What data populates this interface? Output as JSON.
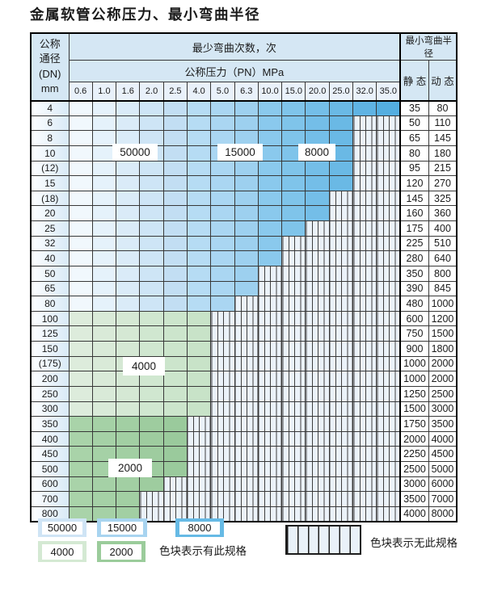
{
  "page": {
    "title": "金属软管公称压力、最小弯曲半径"
  },
  "table": {
    "corner_header": "公称\n通径\n(DN)\nmm",
    "bend_cycles_header": "最少弯曲次数，次",
    "pressure_header": "公称压力（PN）MPa",
    "radius_header": "最小弯曲半径",
    "static_header": "静 态",
    "dynamic_header": "动 态",
    "pressure_columns": [
      "0.6",
      "1.0",
      "1.6",
      "2.0",
      "2.5",
      "4.0",
      "5.0",
      "6.3",
      "10.0",
      "15.0",
      "20.0",
      "25.0",
      "32.0",
      "35.0"
    ],
    "rows": [
      {
        "dn": "4",
        "family": "blue",
        "max_pn": "35.0",
        "static": "35",
        "dynamic": "80"
      },
      {
        "dn": "6",
        "family": "blue",
        "max_pn": "25.0",
        "static": "50",
        "dynamic": "110"
      },
      {
        "dn": "8",
        "family": "blue",
        "max_pn": "25.0",
        "static": "65",
        "dynamic": "145"
      },
      {
        "dn": "10",
        "family": "blue",
        "max_pn": "25.0",
        "static": "80",
        "dynamic": "180"
      },
      {
        "dn": "(12)",
        "family": "blue",
        "max_pn": "25.0",
        "static": "95",
        "dynamic": "215"
      },
      {
        "dn": "15",
        "family": "blue",
        "max_pn": "25.0",
        "static": "120",
        "dynamic": "270"
      },
      {
        "dn": "(18)",
        "family": "blue",
        "max_pn": "20.0",
        "static": "145",
        "dynamic": "325"
      },
      {
        "dn": "20",
        "family": "blue",
        "max_pn": "20.0",
        "static": "160",
        "dynamic": "360"
      },
      {
        "dn": "25",
        "family": "blue",
        "max_pn": "15.0",
        "static": "175",
        "dynamic": "400"
      },
      {
        "dn": "32",
        "family": "blue",
        "max_pn": "10.0",
        "static": "225",
        "dynamic": "510"
      },
      {
        "dn": "40",
        "family": "blue",
        "max_pn": "10.0",
        "static": "280",
        "dynamic": "640"
      },
      {
        "dn": "50",
        "family": "blue",
        "max_pn": "6.3",
        "static": "350",
        "dynamic": "800"
      },
      {
        "dn": "65",
        "family": "blue",
        "max_pn": "6.3",
        "static": "390",
        "dynamic": "845"
      },
      {
        "dn": "80",
        "family": "blue",
        "max_pn": "5.0",
        "static": "480",
        "dynamic": "1000"
      },
      {
        "dn": "100",
        "family": "4000",
        "max_pn": "4.0",
        "static": "600",
        "dynamic": "1200"
      },
      {
        "dn": "125",
        "family": "4000",
        "max_pn": "4.0",
        "static": "750",
        "dynamic": "1500"
      },
      {
        "dn": "150",
        "family": "4000",
        "max_pn": "4.0",
        "static": "900",
        "dynamic": "1800"
      },
      {
        "dn": "(175)",
        "family": "4000",
        "max_pn": "4.0",
        "static": "1000",
        "dynamic": "2000"
      },
      {
        "dn": "200",
        "family": "4000",
        "max_pn": "4.0",
        "static": "1000",
        "dynamic": "2000"
      },
      {
        "dn": "250",
        "family": "4000",
        "max_pn": "4.0",
        "static": "1250",
        "dynamic": "2500"
      },
      {
        "dn": "300",
        "family": "4000",
        "max_pn": "4.0",
        "static": "1500",
        "dynamic": "3000"
      },
      {
        "dn": "350",
        "family": "2000",
        "max_pn": "2.5",
        "static": "1750",
        "dynamic": "3500"
      },
      {
        "dn": "400",
        "family": "2000",
        "max_pn": "2.5",
        "static": "2000",
        "dynamic": "4000"
      },
      {
        "dn": "450",
        "family": "2000",
        "max_pn": "2.5",
        "static": "2250",
        "dynamic": "4500"
      },
      {
        "dn": "500",
        "family": "2000",
        "max_pn": "2.5",
        "static": "2500",
        "dynamic": "5000"
      },
      {
        "dn": "600",
        "family": "2000",
        "max_pn": "2.0",
        "static": "3000",
        "dynamic": "6000"
      },
      {
        "dn": "700",
        "family": "2000",
        "max_pn": "1.6",
        "static": "3500",
        "dynamic": "7000"
      },
      {
        "dn": "800",
        "family": "2000",
        "max_pn": "1.6",
        "static": "4000",
        "dynamic": "8000"
      }
    ]
  },
  "zones": {
    "blue": [
      {
        "label": "50000",
        "span": [
          0,
          4
        ],
        "from": "#f1f8fd",
        "to": "#c2def3"
      },
      {
        "label": "15000",
        "span": [
          5,
          7
        ],
        "from": "#b6dcf4",
        "to": "#9dd0ef"
      },
      {
        "label": "8000",
        "span": [
          8,
          13
        ],
        "from": "#8ac9ed",
        "to": "#54aee0"
      }
    ],
    "green": {
      "4000": {
        "label": "4000",
        "span": [
          0,
          5
        ],
        "from": "#ddecdc",
        "to": "#c8e3c8"
      },
      "2000": {
        "label": "2000",
        "span": [
          0,
          4
        ],
        "from": "#a9d3a9",
        "to": "#9aca9c"
      }
    }
  },
  "hatch": {
    "fill": "#ebf2f9",
    "line": "#3f3f3f",
    "meaning": "无此规格"
  },
  "legend": {
    "blocks": [
      {
        "label": "50000",
        "color": "#cfe4f5"
      },
      {
        "label": "15000",
        "color": "#a8d4f0"
      },
      {
        "label": "8000",
        "color": "#66bae5"
      },
      {
        "label": "4000",
        "color": "#d4e9d3"
      },
      {
        "label": "2000",
        "color": "#9bcc9b"
      }
    ],
    "has_spec_text": "色块表示有此规格",
    "no_spec_text": "色块表示无此规格"
  }
}
